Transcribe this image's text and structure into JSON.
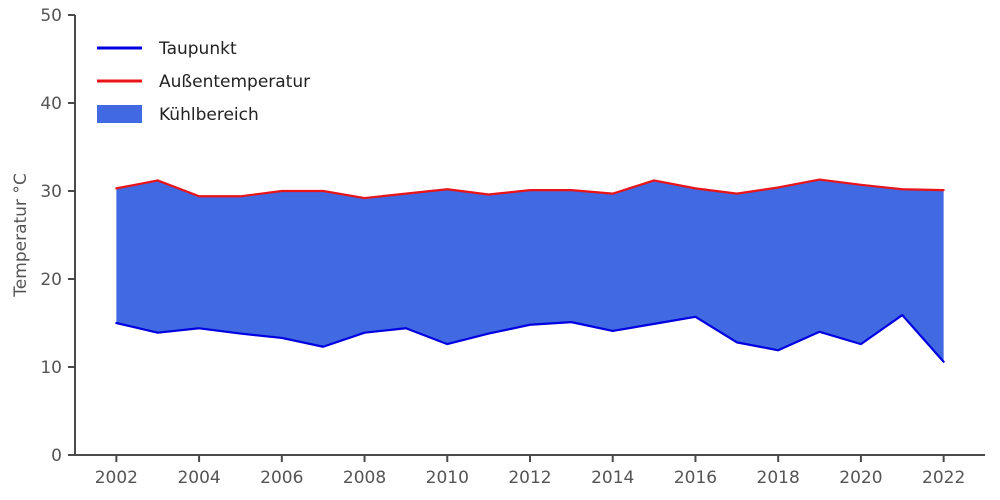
{
  "chart_data": {
    "type": "area",
    "title": "",
    "xlabel": "",
    "ylabel": "Temperatur °C",
    "x": [
      2002,
      2003,
      2004,
      2005,
      2006,
      2007,
      2008,
      2009,
      2010,
      2011,
      2012,
      2013,
      2014,
      2015,
      2016,
      2017,
      2018,
      2019,
      2020,
      2021,
      2022
    ],
    "series": [
      {
        "name": "Taupunkt",
        "color": "#0000e0",
        "values": [
          15.0,
          13.9,
          14.4,
          13.8,
          13.3,
          12.3,
          13.9,
          14.4,
          12.6,
          13.8,
          14.8,
          15.1,
          14.1,
          14.9,
          15.7,
          12.8,
          11.9,
          14.0,
          12.6,
          15.9,
          10.6
        ]
      },
      {
        "name": "Außentemperatur",
        "color": "#e81418",
        "values": [
          30.3,
          31.2,
          29.4,
          29.4,
          30.0,
          30.0,
          29.2,
          29.7,
          30.2,
          29.6,
          30.1,
          30.1,
          29.7,
          31.2,
          30.3,
          29.7,
          30.4,
          31.3,
          30.7,
          30.2,
          30.1
        ]
      }
    ],
    "fill_between": {
      "name": "Kühlbereich",
      "color": "#4169e1"
    },
    "legend": {
      "position": "upper left",
      "entries": [
        "Taupunkt",
        "Außentemperatur",
        "Kühlbereich"
      ]
    },
    "xlim": [
      2001,
      2023
    ],
    "ylim": [
      0,
      50
    ],
    "xticks": [
      2002,
      2004,
      2006,
      2008,
      2010,
      2012,
      2014,
      2016,
      2018,
      2020,
      2022
    ],
    "yticks": [
      0,
      10,
      20,
      30,
      40,
      50
    ],
    "grid": false
  },
  "colors": {
    "axis_text": "#555555",
    "spine": "#4a4a4a",
    "legend_text": "#222222",
    "background": "#ffffff"
  }
}
